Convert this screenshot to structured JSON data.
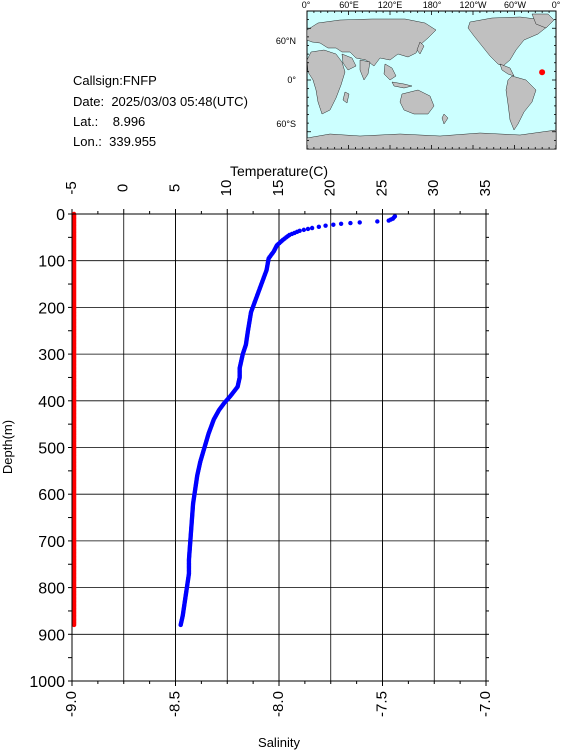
{
  "station": {
    "callsign_label": "Callsign:",
    "callsign": "FNFP",
    "date_label": "Date:",
    "date": "2025/03/03 05:48(UTC)",
    "lat_label": "Lat.:",
    "lat": "8.996",
    "lon_label": "Lon.:",
    "lon": "339.955"
  },
  "map": {
    "lon_ticks": [
      "0°",
      "60°E",
      "120°E",
      "180°",
      "120°W",
      "60°W",
      "0°"
    ],
    "lat_ticks": [
      "60°N",
      "0°",
      "60°S"
    ],
    "ocean_color": "#ccffff",
    "land_color": "#c0c0c0",
    "marker_color": "#ff0000",
    "marker_lon": 339.955,
    "marker_lat": 8.996
  },
  "chart_data": {
    "type": "scatter",
    "ylabel": "Depth(m)",
    "ylim": [
      0,
      1000
    ],
    "y_ticks": [
      0,
      100,
      200,
      300,
      400,
      500,
      600,
      700,
      800,
      900,
      1000
    ],
    "top_axis": {
      "label": "Temperature(C)",
      "range": [
        -5,
        35
      ],
      "ticks": [
        -5,
        0,
        5,
        10,
        15,
        20,
        25,
        30,
        35
      ]
    },
    "bottom_axis": {
      "label": "Salinity",
      "range": [
        -9.0,
        -7.0
      ],
      "ticks": [
        "-9.0",
        "-8.5",
        "-8.0",
        "-7.5",
        "-7.0"
      ]
    },
    "grid": true,
    "series": [
      {
        "axis": "top",
        "color": "#0000ff",
        "points": [
          [
            26.2,
            5
          ],
          [
            26.0,
            10
          ],
          [
            25.6,
            14
          ],
          [
            24.5,
            16
          ],
          [
            22.8,
            18
          ],
          [
            21.0,
            21
          ],
          [
            19.5,
            25
          ],
          [
            18.2,
            30
          ],
          [
            17.0,
            36
          ],
          [
            16.0,
            45
          ],
          [
            15.4,
            55
          ],
          [
            14.8,
            67
          ],
          [
            14.5,
            80
          ],
          [
            14.0,
            95
          ],
          [
            13.8,
            120
          ],
          [
            13.3,
            150
          ],
          [
            12.8,
            180
          ],
          [
            12.3,
            210
          ],
          [
            12.0,
            250
          ],
          [
            11.8,
            280
          ],
          [
            11.5,
            300
          ],
          [
            11.2,
            330
          ],
          [
            11.2,
            350
          ],
          [
            11.0,
            370
          ],
          [
            10.3,
            390
          ],
          [
            9.7,
            405
          ],
          [
            9.2,
            420
          ],
          [
            8.7,
            440
          ],
          [
            8.2,
            470
          ],
          [
            7.8,
            500
          ],
          [
            7.4,
            530
          ],
          [
            7.1,
            560
          ],
          [
            6.9,
            590
          ],
          [
            6.7,
            620
          ],
          [
            6.6,
            650
          ],
          [
            6.5,
            680
          ],
          [
            6.4,
            710
          ],
          [
            6.3,
            740
          ],
          [
            6.3,
            770
          ],
          [
            6.1,
            800
          ],
          [
            5.9,
            830
          ],
          [
            5.7,
            860
          ],
          [
            5.5,
            880
          ]
        ]
      },
      {
        "axis": "bottom",
        "color": "#ff0000",
        "points": [
          [
            -8.99,
            0
          ],
          [
            -8.99,
            100
          ],
          [
            -8.99,
            200
          ],
          [
            -8.99,
            300
          ],
          [
            -8.99,
            400
          ],
          [
            -8.99,
            500
          ],
          [
            -8.99,
            600
          ],
          [
            -8.99,
            700
          ],
          [
            -8.99,
            800
          ],
          [
            -8.99,
            880
          ]
        ]
      }
    ]
  }
}
